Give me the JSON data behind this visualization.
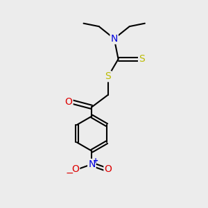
{
  "background_color": "#ececec",
  "atom_colors": {
    "C": "#000000",
    "N": "#0000dd",
    "O": "#dd0000",
    "S": "#bbbb00",
    "H": "#000000"
  },
  "bond_color": "#000000",
  "figsize": [
    3.0,
    3.0
  ],
  "dpi": 100
}
